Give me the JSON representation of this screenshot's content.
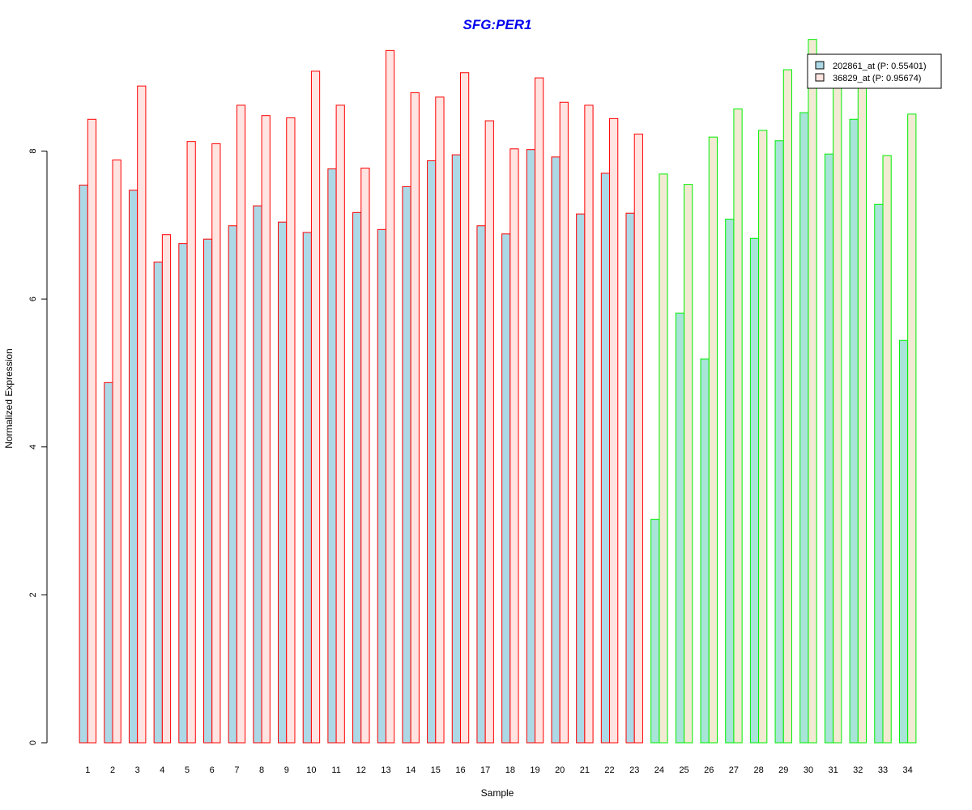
{
  "chart_data": {
    "type": "bar",
    "title": "SFG:PER1",
    "xlabel": "Sample",
    "ylabel": "Normalized Expression",
    "ylim": [
      0,
      9.55
    ],
    "yticks": [
      0,
      2,
      4,
      6,
      8
    ],
    "categories": [
      "1",
      "2",
      "3",
      "4",
      "5",
      "6",
      "7",
      "8",
      "9",
      "10",
      "11",
      "12",
      "13",
      "14",
      "15",
      "16",
      "17",
      "18",
      "19",
      "20",
      "21",
      "22",
      "23",
      "24",
      "25",
      "26",
      "27",
      "28",
      "29",
      "30",
      "31",
      "32",
      "33",
      "34"
    ],
    "group_border_colors": [
      "#ff0000",
      "#ff0000",
      "#ff0000",
      "#ff0000",
      "#ff0000",
      "#ff0000",
      "#ff0000",
      "#ff0000",
      "#ff0000",
      "#ff0000",
      "#ff0000",
      "#ff0000",
      "#ff0000",
      "#ff0000",
      "#ff0000",
      "#ff0000",
      "#ff0000",
      "#ff0000",
      "#ff0000",
      "#ff0000",
      "#ff0000",
      "#ff0000",
      "#ff0000",
      "#00ee00",
      "#00ee00",
      "#00ee00",
      "#00ee00",
      "#00ee00",
      "#00ee00",
      "#00ee00",
      "#00ee00",
      "#00ee00",
      "#00ee00",
      "#00ee00"
    ],
    "series": [
      {
        "name": "202861_at (P: 0.55401)",
        "legend_fill": "#add8e6",
        "fill_by_group": {
          "#ff0000": "#add8e6",
          "#00ee00": "#a8e4d8"
        },
        "values": [
          7.54,
          4.87,
          7.47,
          6.5,
          6.75,
          6.81,
          6.99,
          7.26,
          7.04,
          6.9,
          7.76,
          7.17,
          6.94,
          7.52,
          7.87,
          7.95,
          6.99,
          6.88,
          8.02,
          7.92,
          7.15,
          7.7,
          7.16,
          3.02,
          5.81,
          5.19,
          7.08,
          6.82,
          8.14,
          8.52,
          7.96,
          8.43,
          7.28,
          5.44
        ]
      },
      {
        "name": "36829_at (P: 0.95674)",
        "legend_fill": "#ffe4e1",
        "fill_by_group": {
          "#ff0000": "#ffe4e1",
          "#00ee00": "#f2ead2"
        },
        "values": [
          8.43,
          7.88,
          8.88,
          6.87,
          8.13,
          8.1,
          8.62,
          8.48,
          8.45,
          9.08,
          8.62,
          7.77,
          9.36,
          8.79,
          8.73,
          9.06,
          8.41,
          8.03,
          8.99,
          8.66,
          8.62,
          8.44,
          8.23,
          7.69,
          7.55,
          8.19,
          8.57,
          8.28,
          9.1,
          9.51,
          8.93,
          8.93,
          7.94,
          8.5
        ]
      }
    ],
    "legend": {
      "position": "top-right",
      "border_color": "#000000"
    },
    "grid": false
  }
}
